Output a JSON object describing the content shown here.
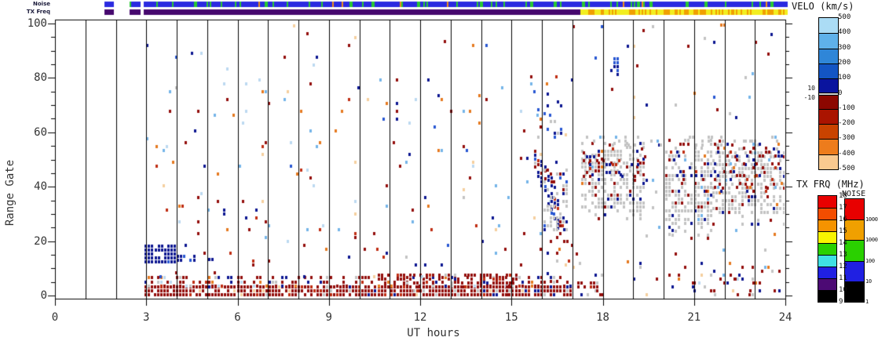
{
  "strips": {
    "noise_label": "Noise",
    "tx_freq_label": "TX Freq"
  },
  "axes": {
    "x_title": "UT hours",
    "y_title": "Range Gate"
  },
  "colorbars": {
    "velo": {
      "title": "VELO (km/s)",
      "side_labels": [
        "10",
        "-10"
      ],
      "labels": [
        "500",
        "400",
        "300",
        "200",
        "100",
        "0",
        "-100",
        "-200",
        "-300",
        "-400",
        "-500"
      ],
      "segments": [
        {
          "from": 500,
          "to": 400,
          "color": "#abdcf5"
        },
        {
          "from": 400,
          "to": 300,
          "color": "#5fb1ea"
        },
        {
          "from": 300,
          "to": 200,
          "color": "#2f86d8"
        },
        {
          "from": 200,
          "to": 100,
          "color": "#1355c4"
        },
        {
          "from": 100,
          "to": 10,
          "color": "#0a149e"
        },
        {
          "from": 10,
          "to": -10,
          "color": "#cfcfcf"
        },
        {
          "from": -10,
          "to": -100,
          "color": "#8c0700"
        },
        {
          "from": -100,
          "to": -200,
          "color": "#aa1400"
        },
        {
          "from": -200,
          "to": -300,
          "color": "#c94300"
        },
        {
          "from": -300,
          "to": -400,
          "color": "#ed7c1c"
        },
        {
          "from": -400,
          "to": -500,
          "color": "#f9c98f"
        }
      ]
    },
    "txfrq": {
      "title": "TX FRQ (MHz)",
      "labels": [
        "18",
        "17",
        "16",
        "15",
        "14",
        "13",
        "12",
        "11",
        "10",
        "9"
      ],
      "segment_colors": [
        "#e80000",
        "#f34d00",
        "#f59300",
        "#f8f400",
        "#2ad000",
        "#3fe0e4",
        "#2020e2",
        "#4c0a74",
        "#000000"
      ]
    },
    "noise": {
      "title": "NOISE",
      "labels": [
        "10000",
        "1000",
        "100",
        "10",
        "1"
      ],
      "segment_colors": [
        "#e80000",
        "#f0a000",
        "#2ad000",
        "#2020e2",
        "#000000"
      ]
    }
  },
  "chart_data": {
    "type": "scatter",
    "title": "",
    "xlabel": "UT hours",
    "ylabel": "Range Gate",
    "xlim": [
      0,
      24
    ],
    "ylim": [
      0,
      100
    ],
    "x_ticks": [
      "0",
      "3",
      "6",
      "9",
      "12",
      "15",
      "18",
      "21",
      "24"
    ],
    "y_ticks": [
      "0",
      "20",
      "40",
      "60",
      "80",
      "100"
    ],
    "hour_gridlines": true,
    "seed": 11,
    "cell": {
      "t_step": 0.105,
      "g_step": 1.45,
      "w": 3,
      "h": 4
    },
    "palette": {
      "navy": "#0c1690",
      "blue": "#2857d2",
      "light_blue": "#74b4e8",
      "pale_blue": "#bcd9f0",
      "pale_orange": "#f4cf9e",
      "orange": "#e5791f",
      "red": "#bf2d12",
      "maroon": "#930e0c",
      "gray": "#c3c3c3"
    },
    "strip_bars": {
      "segments_t": [
        [
          1.62,
          1.93
        ],
        [
          2.45,
          2.77
        ],
        [
          2.87,
          24.05
        ]
      ],
      "noise": {
        "base": "#2a2ae0",
        "fleck": "#28c832",
        "fleck_p": 0.12,
        "rare": "#f09018",
        "rare_p": 0.012
      },
      "tx_freq": {
        "phase1_until": 17.25,
        "phase1_color": "#46086e",
        "phase2_base": "#f2ee20",
        "phase2_fleck": "#f0a000",
        "phase2_fleck_p": 0.32
      }
    },
    "clusters": [
      {
        "name": "low-gate-band",
        "t": [
          2.93,
          17.0
        ],
        "g": [
          0,
          3.3
        ],
        "d": 0.88,
        "pal": {
          "maroon": 0.8,
          "red": 0.05,
          "navy": 0.05,
          "gray": 0.05,
          "pale_orange": 0.05
        }
      },
      {
        "name": "low-gate-band-top",
        "t": [
          2.93,
          17.0
        ],
        "g": [
          3.3,
          6.6
        ],
        "d": 0.4,
        "pal": {
          "maroon": 0.58,
          "navy": 0.14,
          "gray": 0.1,
          "red": 0.06,
          "orange": 0.06,
          "pale_blue": 0.06
        }
      },
      {
        "name": "low-gate-band-midday",
        "t": [
          10.6,
          15.2
        ],
        "g": [
          0,
          7.6
        ],
        "d": 0.5,
        "pal": {
          "maroon": 0.86,
          "red": 0.08,
          "navy": 0.03,
          "gray": 0.03
        }
      },
      {
        "name": "navy-blob-core",
        "t": [
          2.95,
          3.9
        ],
        "g": [
          12.2,
          18.2
        ],
        "d": 0.92,
        "pal": {
          "navy": 0.93,
          "blue": 0.04,
          "gray": 0.03
        }
      },
      {
        "name": "navy-blob-tail",
        "t": [
          3.9,
          4.6
        ],
        "g": [
          12.8,
          15.6
        ],
        "d": 0.75,
        "pal": {
          "navy": 0.9,
          "blue": 0.05,
          "maroon": 0.05
        }
      },
      {
        "name": "navy-blob-stragglers",
        "t": [
          4.6,
          5.15
        ],
        "g": [
          13,
          15.2
        ],
        "d": 0.2,
        "pal": {
          "navy": 0.85,
          "gray": 0.15
        }
      },
      {
        "name": "daytime-sparse",
        "t": [
          3.0,
          17.0
        ],
        "g": [
          6.6,
          80
        ],
        "d": 0.03,
        "pal": {
          "maroon": 0.26,
          "navy": 0.15,
          "red": 0.1,
          "orange": 0.12,
          "light_blue": 0.11,
          "pale_blue": 0.08,
          "pale_orange": 0.1,
          "blue": 0.05,
          "gray": 0.03
        }
      },
      {
        "name": "daytime-top-sparse",
        "t": [
          3.0,
          17.0
        ],
        "g": [
          80,
          100
        ],
        "d": 0.007,
        "pal": {
          "maroon": 0.26,
          "navy": 0.15,
          "red": 0.1,
          "orange": 0.12,
          "light_blue": 0.11,
          "pale_blue": 0.08,
          "pale_orange": 0.1,
          "blue": 0.05,
          "gray": 0.03
        }
      },
      {
        "name": "dusk-navy-streak",
        "t": [
          15.75,
          16.55
        ],
        "gtop": [
          58,
          36
        ],
        "gbot": [
          47,
          21
        ],
        "d": 0.55,
        "pal": {
          "navy": 0.74,
          "blue": 0.07,
          "maroon": 0.1,
          "gray": 0.05,
          "red": 0.04
        }
      },
      {
        "name": "dusk-gray-patch",
        "t": [
          16.05,
          16.8
        ],
        "g": [
          24,
          46
        ],
        "d": 0.42,
        "pal": {
          "gray": 0.76,
          "navy": 0.11,
          "maroon": 0.09,
          "blue": 0.04
        }
      },
      {
        "name": "dusk-high-specks",
        "t": [
          15.85,
          16.6
        ],
        "g": [
          55,
          76
        ],
        "d": 0.07,
        "pal": {
          "navy": 0.65,
          "blue": 0.2,
          "gray": 0.15
        }
      },
      {
        "name": "dusk-low-specks",
        "t": [
          15.95,
          17.0
        ],
        "g": [
          5,
          24
        ],
        "d": 0.09,
        "pal": {
          "navy": 0.45,
          "maroon": 0.35,
          "gray": 0.2
        }
      },
      {
        "name": "gs-blob-1",
        "t": [
          17.3,
          19.4
        ],
        "g": [
          28,
          57
        ],
        "d": 0.62,
        "ragged": true,
        "pal": {
          "gray": 0.82,
          "maroon": 0.08,
          "navy": 0.07,
          "light_blue": 0.015,
          "orange": 0.015
        }
      },
      {
        "name": "gs-blob-1-specks",
        "t": [
          17.35,
          19.35
        ],
        "g": [
          42,
          56
        ],
        "d": 0.16,
        "pal": {
          "maroon": 0.5,
          "navy": 0.38,
          "red": 0.12
        }
      },
      {
        "name": "gap-sparse",
        "t": [
          19.4,
          20.05
        ],
        "g": [
          0,
          58
        ],
        "d": 0.025,
        "pal": {
          "maroon": 0.3,
          "navy": 0.25,
          "gray": 0.25,
          "orange": 0.1,
          "light_blue": 0.1
        }
      },
      {
        "name": "gs-blob-2",
        "t": [
          20.05,
          21.6
        ],
        "g": [
          22,
          57
        ],
        "d": 0.58,
        "ragged": true,
        "pal": {
          "gray": 0.82,
          "maroon": 0.08,
          "navy": 0.07,
          "light_blue": 0.015,
          "orange": 0.015
        }
      },
      {
        "name": "gs-blob-2-specks",
        "t": [
          20.1,
          21.55
        ],
        "g": [
          38,
          56
        ],
        "d": 0.12,
        "pal": {
          "maroon": 0.5,
          "navy": 0.38,
          "red": 0.12
        }
      },
      {
        "name": "gs-blob-3",
        "t": [
          21.6,
          23.95
        ],
        "g": [
          26,
          57
        ],
        "d": 0.58,
        "ragged": true,
        "pal": {
          "gray": 0.8,
          "maroon": 0.09,
          "navy": 0.08,
          "light_blue": 0.015,
          "orange": 0.015
        }
      },
      {
        "name": "gs-blob-3-specks",
        "t": [
          21.65,
          23.9
        ],
        "g": [
          38,
          56
        ],
        "d": 0.22,
        "pal": {
          "maroon": 0.48,
          "navy": 0.3,
          "red": 0.12,
          "orange": 0.05,
          "light_blue": 0.05
        }
      },
      {
        "name": "gs-top-speckle",
        "t": [
          17.35,
          23.9
        ],
        "g": [
          55,
          59
        ],
        "d": 0.18,
        "pal": {
          "gray": 0.9,
          "light_blue": 0.1
        }
      },
      {
        "name": "evening-low-sparse",
        "t": [
          17.0,
          23.95
        ],
        "g": [
          0,
          12
        ],
        "d": 0.07,
        "pal": {
          "maroon": 0.4,
          "navy": 0.2,
          "gray": 0.16,
          "orange": 0.08,
          "light_blue": 0.08,
          "pale_orange": 0.08
        }
      },
      {
        "name": "evening-low-dense",
        "t": [
          17.05,
          17.95
        ],
        "g": [
          0,
          5.5
        ],
        "d": 0.4,
        "pal": {
          "maroon": 0.75,
          "navy": 0.1,
          "red": 0.08,
          "gray": 0.07
        }
      },
      {
        "name": "late-low-cluster",
        "t": [
          20.5,
          23.95
        ],
        "g": [
          0,
          9
        ],
        "d": 0.12,
        "pal": {
          "maroon": 0.5,
          "navy": 0.2,
          "gray": 0.12,
          "orange": 0.06,
          "light_blue": 0.06,
          "pale_blue": 0.06
        }
      },
      {
        "name": "evening-mid-sparse",
        "t": [
          17.0,
          23.95
        ],
        "g": [
          12,
          26
        ],
        "d": 0.02,
        "pal": {
          "maroon": 0.35,
          "navy": 0.25,
          "gray": 0.2,
          "orange": 0.1,
          "light_blue": 0.1
        }
      },
      {
        "name": "evening-high-sparse",
        "t": [
          17.0,
          23.95
        ],
        "g": [
          58,
          100
        ],
        "d": 0.013,
        "pal": {
          "gray": 0.22,
          "navy": 0.18,
          "blue": 0.12,
          "light_blue": 0.12,
          "maroon": 0.16,
          "orange": 0.1,
          "pale_orange": 0.1
        }
      },
      {
        "name": "evening-blue-cluster",
        "t": [
          18.25,
          18.5
        ],
        "g": [
          81,
          87
        ],
        "d": 0.55,
        "pal": {
          "navy": 0.5,
          "blue": 0.5
        }
      },
      {
        "name": "top-frame-speck",
        "t": [
          21.86,
          21.97
        ],
        "g": [
          99.2,
          100.2
        ],
        "d": 1.0,
        "pal": {
          "orange": 1.0
        }
      }
    ]
  }
}
